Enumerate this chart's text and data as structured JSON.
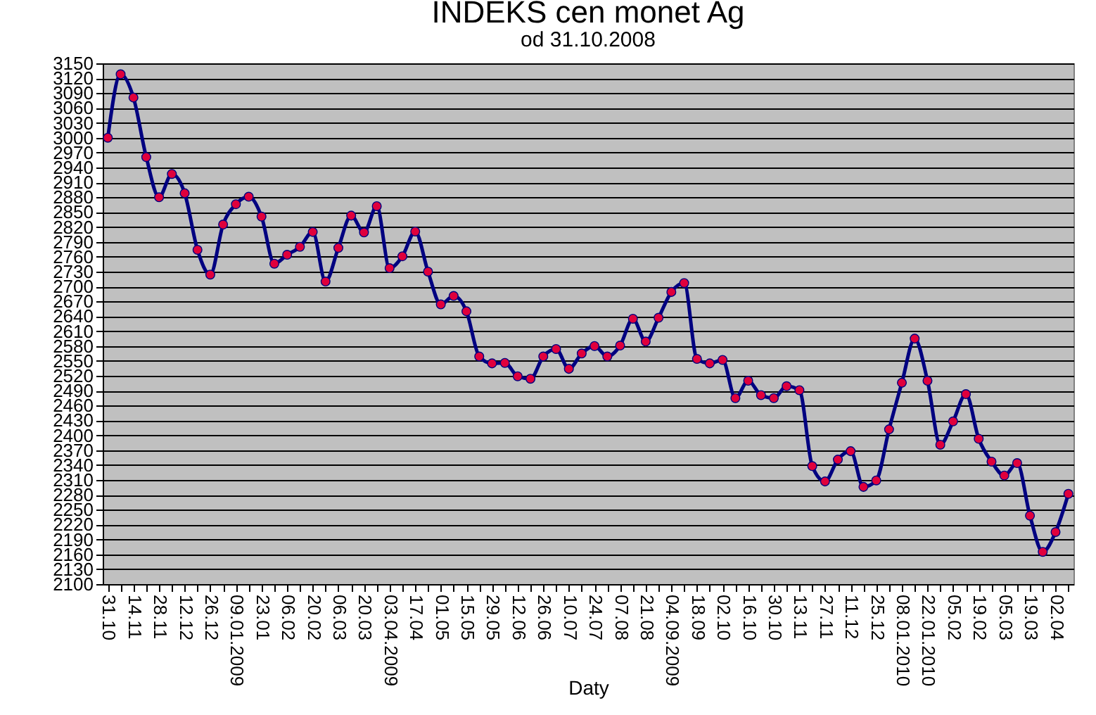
{
  "chart_data": {
    "type": "line",
    "title": "INDEKS cen monet Ag",
    "subtitle": "od 31.10.2008",
    "xlabel": "Daty",
    "categories": [
      "31.10",
      null,
      "14.11",
      null,
      "28.11",
      null,
      "12.12",
      null,
      "26.12",
      null,
      "09.01.2009",
      null,
      "23.01",
      null,
      "06.02",
      null,
      "20.02",
      null,
      "06.03",
      null,
      "20.03",
      null,
      "03.04.2009",
      null,
      "17.04",
      null,
      "01.05",
      null,
      "15.05",
      null,
      "29.05",
      null,
      "12.06",
      null,
      "26.06",
      null,
      "10.07",
      null,
      "24.07",
      null,
      "07.08",
      null,
      "21.08",
      null,
      "04.09.2009",
      null,
      "18.09",
      null,
      "02.10",
      null,
      "16.10",
      null,
      "30.10",
      null,
      "13.11",
      null,
      "27.11",
      null,
      "11.12",
      null,
      "25.12",
      null,
      "08.01.2010",
      null,
      "22.01.2010",
      null,
      "05.02",
      null,
      "19.02",
      null,
      "05.03",
      null,
      "19.03",
      null,
      "02.04",
      null
    ],
    "series": [
      {
        "color": "#000080",
        "values": [
          3000,
          3128,
          3081,
          2961,
          2880,
          2927,
          2888,
          2774,
          2724,
          2825,
          2866,
          2881,
          2841,
          2746,
          2764,
          2780,
          2810,
          2710,
          2778,
          2843,
          2809,
          2862,
          2737,
          2761,
          2811,
          2730,
          2664,
          2681,
          2650,
          2559,
          2545,
          2546,
          2519,
          2514,
          2559,
          2574,
          2534,
          2565,
          2580,
          2559,
          2581,
          2635,
          2589,
          2637,
          2689,
          2707,
          2554,
          2545,
          2552,
          2475,
          2510,
          2481,
          2475,
          2499,
          2491,
          2338,
          2307,
          2351,
          2368,
          2296,
          2309,
          2412,
          2506,
          2595,
          2510,
          2381,
          2428,
          2483,
          2393,
          2347,
          2319,
          2344,
          2238,
          2165,
          2205,
          2282
        ]
      }
    ],
    "ylim": [
      2100,
      3150
    ],
    "yticks": [
      2100,
      2130,
      2160,
      2190,
      2220,
      2250,
      2280,
      2310,
      2340,
      2370,
      2400,
      2430,
      2460,
      2490,
      2520,
      2550,
      2580,
      2610,
      2640,
      2670,
      2700,
      2730,
      2760,
      2790,
      2820,
      2850,
      2880,
      2910,
      2940,
      2970,
      3000,
      3030,
      3060,
      3090,
      3120,
      3150
    ],
    "grid": "y",
    "marker": "circle",
    "line_style": "solid"
  }
}
